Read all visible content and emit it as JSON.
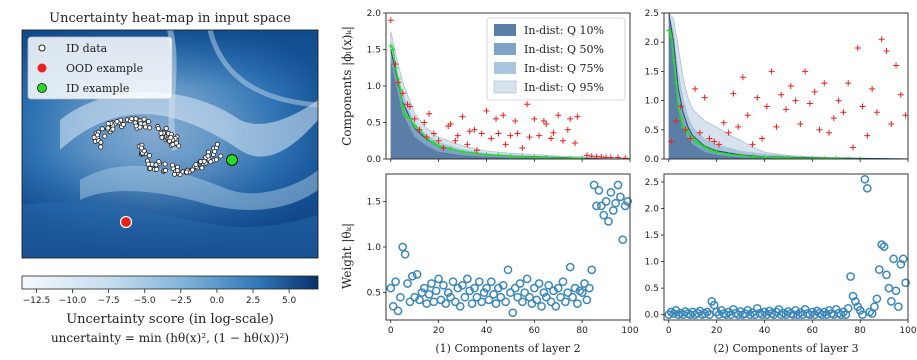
{
  "colors": {
    "band_10": "#5b7ea6",
    "band_50": "#7ea3c6",
    "band_75": "#a9c4dc",
    "band_95": "#d7e2ec",
    "median_line": "#2b4a6b",
    "ood_marker": "#e8211d",
    "id_curve": "#22dd22",
    "theta_marker": "#3b87b9",
    "heat_dark": "#0b3b7a",
    "heat_light": "#e8f2fa"
  },
  "heatmap_panel": {
    "title": "Uncertainty heat-map in input space",
    "legend": [
      {
        "label": "ID data",
        "marker": "open-circle"
      },
      {
        "label": "OOD example",
        "marker": "red-dot"
      },
      {
        "label": "ID example",
        "marker": "green-dot"
      }
    ],
    "colorbar_ticks": [
      "−12.5",
      "−10.0",
      "−7.5",
      "−5.0",
      "−2.5",
      "0.0",
      "2.5",
      "5.0"
    ],
    "colorbar_range": [
      -13.5,
      7.0
    ],
    "xlabel": "Uncertainty score (in log-scale)",
    "formula": "uncertainty = min (hθ(x)², (1 − hθ(x))²)"
  },
  "chart_data": [
    {
      "type": "area",
      "panel": "components-layer-2",
      "ylabel": "Components |ϕₗ(x)ₖ|",
      "xlim": [
        -2,
        100
      ],
      "ylim": [
        0,
        2.0
      ],
      "yticks": [
        "0.0",
        "0.5",
        "1.0",
        "1.5",
        "2.0"
      ],
      "legend": [
        "In-dist: Q 10%",
        "In-dist: Q 50%",
        "In-dist: Q 75%",
        "In-dist: Q 95%"
      ],
      "series": [
        {
          "name": "In-dist: Q 10%",
          "x": [
            0,
            2,
            5,
            10,
            15,
            20,
            30,
            40,
            50,
            60,
            70,
            80,
            90,
            100
          ],
          "values": [
            1.35,
            1.05,
            0.62,
            0.3,
            0.18,
            0.1,
            0.05,
            0.03,
            0.02,
            0.01,
            0.01,
            0.0,
            0.0,
            0.0
          ]
        },
        {
          "name": "In-dist: Q 50%",
          "x": [
            0,
            2,
            5,
            10,
            15,
            20,
            30,
            40,
            50,
            60,
            70,
            80,
            90,
            100
          ],
          "values": [
            1.5,
            1.2,
            0.78,
            0.42,
            0.27,
            0.18,
            0.1,
            0.06,
            0.04,
            0.03,
            0.02,
            0.01,
            0.0,
            0.0
          ]
        },
        {
          "name": "In-dist: Q 75%",
          "x": [
            0,
            2,
            5,
            10,
            15,
            20,
            30,
            40,
            50,
            60,
            70,
            80,
            90,
            100
          ],
          "values": [
            1.6,
            1.3,
            0.9,
            0.5,
            0.33,
            0.23,
            0.13,
            0.08,
            0.06,
            0.04,
            0.03,
            0.02,
            0.01,
            0.0
          ]
        },
        {
          "name": "In-dist: Q 95%",
          "x": [
            0,
            2,
            5,
            10,
            15,
            20,
            30,
            40,
            50,
            60,
            70,
            80,
            90,
            100
          ],
          "values": [
            1.75,
            1.45,
            1.05,
            0.62,
            0.42,
            0.3,
            0.18,
            0.11,
            0.08,
            0.06,
            0.04,
            0.03,
            0.02,
            0.01
          ]
        },
        {
          "name": "ID example",
          "x": [
            0,
            1,
            2,
            3,
            4,
            5,
            6,
            8,
            10,
            12,
            15,
            18,
            20,
            25,
            30,
            35,
            40,
            45,
            50,
            55,
            60,
            65,
            70,
            75,
            80
          ],
          "values": [
            1.55,
            1.5,
            1.25,
            1.1,
            0.95,
            0.72,
            0.6,
            0.55,
            0.45,
            0.4,
            0.28,
            0.22,
            0.18,
            0.14,
            0.1,
            0.08,
            0.06,
            0.05,
            0.04,
            0.03,
            0.02,
            0.02,
            0.01,
            0.01,
            0.01
          ]
        },
        {
          "name": "OOD example",
          "x": [
            0,
            2,
            3,
            5,
            7,
            8,
            10,
            12,
            14,
            15,
            16,
            18,
            20,
            22,
            24,
            25,
            27,
            28,
            30,
            32,
            33,
            35,
            36,
            38,
            40,
            42,
            44,
            45,
            47,
            48,
            50,
            52,
            53,
            55,
            57,
            58,
            60,
            62,
            64,
            65,
            67,
            68,
            70,
            72,
            74,
            75,
            77,
            78,
            80,
            82,
            84,
            86,
            88,
            90,
            92,
            95,
            98
          ],
          "values": [
            1.9,
            1.3,
            1.05,
            0.9,
            0.75,
            0.72,
            0.55,
            0.4,
            0.5,
            0.3,
            0.62,
            0.35,
            0.25,
            0.15,
            0.45,
            0.48,
            0.25,
            0.32,
            0.58,
            0.2,
            0.38,
            0.4,
            0.12,
            0.35,
            0.66,
            0.28,
            0.55,
            0.35,
            0.6,
            0.2,
            0.32,
            0.52,
            0.35,
            0.15,
            0.75,
            0.3,
            0.55,
            0.32,
            0.52,
            0.48,
            0.28,
            0.36,
            0.6,
            0.25,
            0.4,
            0.55,
            0.22,
            0.58,
            0.85,
            0.05,
            0.04,
            0.03,
            0.03,
            0.02,
            0.02,
            0.02,
            0.01
          ]
        }
      ]
    },
    {
      "type": "area",
      "panel": "components-layer-3",
      "xlim": [
        -2,
        100
      ],
      "ylim": [
        0,
        2.5
      ],
      "yticks": [
        "0.0",
        "0.5",
        "1.0",
        "1.5",
        "2.0",
        "2.5"
      ],
      "series": [
        {
          "name": "In-dist: Q 10%",
          "x": [
            0,
            2,
            4,
            6,
            8,
            10,
            15,
            20,
            30,
            40,
            60,
            80,
            100
          ],
          "values": [
            2.5,
            1.6,
            0.9,
            0.55,
            0.35,
            0.25,
            0.12,
            0.07,
            0.03,
            0.02,
            0.01,
            0.0,
            0.0
          ]
        },
        {
          "name": "In-dist: Q 50%",
          "x": [
            0,
            2,
            4,
            6,
            8,
            10,
            15,
            20,
            30,
            40,
            60,
            80,
            100
          ],
          "values": [
            2.5,
            2.0,
            1.2,
            0.8,
            0.55,
            0.4,
            0.22,
            0.14,
            0.07,
            0.04,
            0.02,
            0.01,
            0.0
          ]
        },
        {
          "name": "In-dist: Q 75%",
          "x": [
            0,
            2,
            4,
            6,
            8,
            10,
            15,
            20,
            30,
            40,
            60,
            80,
            100
          ],
          "values": [
            2.5,
            2.2,
            1.5,
            1.05,
            0.75,
            0.55,
            0.35,
            0.25,
            0.14,
            0.09,
            0.04,
            0.02,
            0.01
          ]
        },
        {
          "name": "In-dist: Q 95%",
          "x": [
            0,
            2,
            4,
            6,
            8,
            10,
            15,
            20,
            25,
            30,
            35,
            40,
            50,
            60,
            70,
            80,
            100
          ],
          "values": [
            2.5,
            2.4,
            1.9,
            1.4,
            1.05,
            0.85,
            0.65,
            0.55,
            0.42,
            0.32,
            0.2,
            0.12,
            0.06,
            0.04,
            0.02,
            0.01,
            0.0
          ]
        },
        {
          "name": "ID example",
          "x": [
            0,
            1,
            2,
            3,
            4,
            5,
            6,
            8,
            10,
            12,
            15,
            18,
            20,
            25,
            30,
            35,
            40,
            45,
            50,
            55,
            60,
            65,
            70,
            75,
            80
          ],
          "values": [
            2.2,
            2.1,
            1.7,
            1.3,
            0.9,
            0.7,
            0.55,
            0.45,
            0.35,
            0.28,
            0.2,
            0.14,
            0.12,
            0.08,
            0.06,
            0.04,
            0.03,
            0.02,
            0.02,
            0.01,
            0.01,
            0.01,
            0.01,
            0.0,
            0.0
          ]
        },
        {
          "name": "OOD example",
          "x": [
            1,
            3,
            5,
            7,
            9,
            11,
            13,
            15,
            17,
            19,
            21,
            23,
            25,
            27,
            29,
            31,
            33,
            35,
            37,
            39,
            41,
            43,
            45,
            47,
            49,
            51,
            53,
            55,
            57,
            59,
            61,
            63,
            65,
            67,
            69,
            71,
            73,
            75,
            77,
            79,
            81,
            83,
            85,
            87,
            89,
            91,
            93,
            95,
            97,
            99
          ],
          "values": [
            0.3,
            0.65,
            0.9,
            0.5,
            0.35,
            1.2,
            0.45,
            1.05,
            0.35,
            0.3,
            0.25,
            0.62,
            0.45,
            1.12,
            0.55,
            1.4,
            0.75,
            0.25,
            1.05,
            0.35,
            0.9,
            1.5,
            0.55,
            1.1,
            0.85,
            1.25,
            1.0,
            0.6,
            1.5,
            0.95,
            1.15,
            0.5,
            1.3,
            0.45,
            0.7,
            1.0,
            0.8,
            1.3,
            0.2,
            1.9,
            0.9,
            0.4,
            1.2,
            0.8,
            2.05,
            1.85,
            0.6,
            1.6,
            1.1,
            0.75
          ]
        }
      ]
    },
    {
      "type": "scatter",
      "panel": "weights-layer-2",
      "ylabel": "Weight |θₖ|",
      "xlabel": "(1) Components of layer 2",
      "xlim": [
        -2,
        100
      ],
      "ylim": [
        0.2,
        1.8
      ],
      "xticks": [
        "0",
        "20",
        "40",
        "60",
        "80",
        "100"
      ],
      "yticks": [
        "0.5",
        "1.0",
        "1.5"
      ],
      "x": [
        0,
        1,
        2,
        3,
        4,
        5,
        6,
        7,
        8,
        9,
        10,
        11,
        12,
        13,
        14,
        15,
        16,
        17,
        18,
        19,
        20,
        21,
        22,
        23,
        24,
        25,
        26,
        27,
        28,
        29,
        30,
        31,
        32,
        33,
        34,
        35,
        36,
        37,
        38,
        39,
        40,
        41,
        42,
        43,
        44,
        45,
        46,
        47,
        48,
        49,
        50,
        51,
        52,
        53,
        54,
        55,
        56,
        57,
        58,
        59,
        60,
        61,
        62,
        63,
        64,
        65,
        66,
        67,
        68,
        69,
        70,
        71,
        72,
        73,
        74,
        75,
        76,
        77,
        78,
        79,
        80,
        81,
        82,
        83,
        84,
        85,
        86,
        87,
        88,
        89,
        90,
        91,
        92,
        93,
        94,
        95,
        96,
        97,
        98,
        99
      ],
      "values": [
        0.55,
        0.35,
        0.62,
        0.3,
        0.45,
        1.0,
        0.92,
        0.6,
        0.4,
        0.68,
        0.45,
        0.7,
        0.42,
        0.5,
        0.55,
        0.38,
        0.48,
        0.6,
        0.4,
        0.52,
        0.65,
        0.42,
        0.58,
        0.38,
        0.5,
        0.45,
        0.62,
        0.4,
        0.55,
        0.35,
        0.58,
        0.45,
        0.65,
        0.52,
        0.38,
        0.55,
        0.45,
        0.62,
        0.4,
        0.5,
        0.55,
        0.42,
        0.62,
        0.48,
        0.38,
        0.55,
        0.45,
        0.58,
        0.4,
        0.75,
        0.5,
        0.28,
        0.55,
        0.45,
        0.6,
        0.4,
        0.5,
        0.65,
        0.45,
        0.38,
        0.55,
        0.42,
        0.6,
        0.35,
        0.5,
        0.45,
        0.58,
        0.4,
        0.52,
        0.35,
        0.55,
        0.45,
        0.62,
        0.4,
        0.5,
        0.78,
        0.45,
        0.55,
        0.38,
        0.52,
        0.5,
        0.6,
        0.42,
        0.55,
        0.75,
        1.68,
        1.45,
        1.62,
        1.45,
        1.35,
        1.5,
        1.28,
        1.6,
        1.4,
        1.48,
        1.68,
        1.55,
        1.08,
        1.45,
        1.5
      ]
    },
    {
      "type": "scatter",
      "panel": "weights-layer-3",
      "xlabel": "(2) Components of layer 3",
      "xlim": [
        -2,
        100
      ],
      "ylim": [
        -0.1,
        2.65
      ],
      "xticks": [
        "0",
        "20",
        "40",
        "60",
        "80",
        "100"
      ],
      "yticks": [
        "0.0",
        "0.5",
        "1.0",
        "1.5",
        "2.0",
        "2.5"
      ],
      "x": [
        0,
        1,
        2,
        3,
        4,
        5,
        6,
        7,
        8,
        9,
        10,
        11,
        12,
        13,
        14,
        15,
        16,
        17,
        18,
        19,
        20,
        21,
        22,
        23,
        24,
        25,
        26,
        27,
        28,
        29,
        30,
        31,
        32,
        33,
        34,
        35,
        36,
        37,
        38,
        39,
        40,
        41,
        42,
        43,
        44,
        45,
        46,
        47,
        48,
        49,
        50,
        51,
        52,
        53,
        54,
        55,
        56,
        57,
        58,
        59,
        60,
        61,
        62,
        63,
        64,
        65,
        66,
        67,
        68,
        69,
        70,
        71,
        72,
        73,
        74,
        75,
        76,
        77,
        78,
        79,
        80,
        81,
        82,
        83,
        84,
        85,
        86,
        87,
        88,
        89,
        90,
        91,
        92,
        93,
        94,
        95,
        96,
        97,
        98,
        99
      ],
      "values": [
        0.0,
        0.05,
        0.02,
        0.08,
        0.0,
        0.03,
        0.0,
        0.06,
        0.02,
        0.0,
        0.05,
        0.0,
        0.03,
        0.07,
        0.0,
        0.02,
        0.05,
        0.0,
        0.25,
        0.18,
        0.05,
        0.0,
        0.08,
        0.02,
        0.0,
        0.05,
        0.0,
        0.1,
        0.03,
        0.0,
        0.06,
        0.0,
        0.02,
        0.08,
        0.0,
        0.04,
        0.0,
        0.12,
        0.03,
        0.0,
        0.05,
        0.0,
        0.07,
        0.02,
        0.0,
        0.05,
        0.1,
        0.0,
        0.03,
        0.0,
        0.06,
        0.02,
        0.0,
        0.08,
        0.0,
        0.04,
        0.0,
        0.1,
        0.02,
        0.0,
        0.05,
        0.0,
        0.07,
        0.03,
        0.0,
        0.05,
        0.0,
        0.08,
        0.02,
        0.0,
        0.1,
        0.03,
        0.0,
        0.05,
        0.0,
        0.12,
        0.72,
        0.35,
        0.25,
        0.15,
        0.08,
        0.0,
        2.55,
        2.38,
        0.05,
        0.02,
        0.15,
        0.3,
        0.85,
        1.32,
        1.28,
        0.75,
        0.5,
        0.25,
        1.05,
        0.45,
        0.15,
        0.95,
        1.05,
        0.6
      ]
    }
  ]
}
